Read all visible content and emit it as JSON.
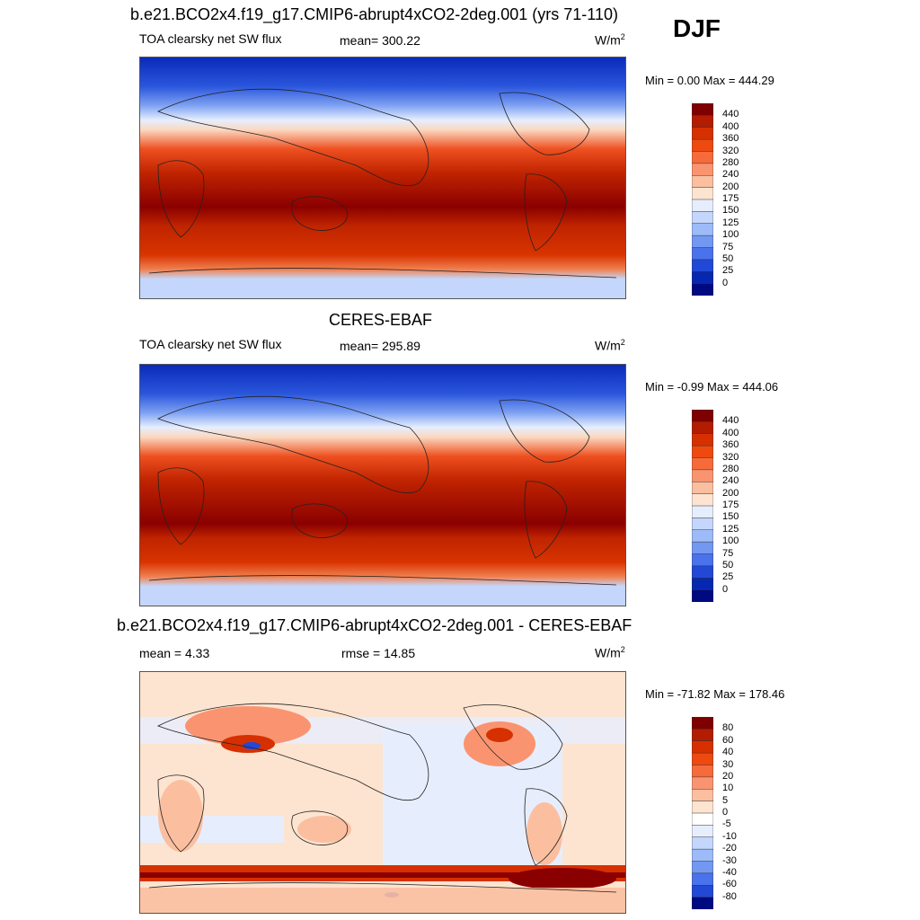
{
  "season": "DJF",
  "panels": [
    {
      "title": "b.e21.BCO2x4.f19_g17.CMIP6-abrupt4xCO2-2deg.001 (yrs 71-110)",
      "left_label": "TOA clearsky net SW flux",
      "center_label": "mean= 300.22",
      "units": "W/m",
      "units_sup": "2",
      "minmax": "Min =   0.00 Max = 444.29",
      "type": "field",
      "colorbar_labels": [
        "440",
        "400",
        "360",
        "320",
        "280",
        "240",
        "200",
        "175",
        "150",
        "125",
        "100",
        "75",
        "50",
        "25",
        "0"
      ]
    },
    {
      "title": "CERES-EBAF",
      "left_label": "TOA clearsky net SW flux",
      "center_label": "mean= 295.89",
      "units": "W/m",
      "units_sup": "2",
      "minmax": "Min =  -0.99 Max = 444.06",
      "type": "field",
      "colorbar_labels": [
        "440",
        "400",
        "360",
        "320",
        "280",
        "240",
        "200",
        "175",
        "150",
        "125",
        "100",
        "75",
        "50",
        "25",
        "0"
      ]
    },
    {
      "title": "b.e21.BCO2x4.f19_g17.CMIP6-abrupt4xCO2-2deg.001 - CERES-EBAF",
      "left_label": "mean =   4.33",
      "center_label": "rmse =  14.85",
      "units": "W/m",
      "units_sup": "2",
      "minmax": "Min = -71.82 Max = 178.46",
      "type": "diff",
      "colorbar_labels": [
        "80",
        "60",
        "40",
        "30",
        "20",
        "10",
        "5",
        "0",
        "-5",
        "-10",
        "-20",
        "-30",
        "-40",
        "-60",
        "-80"
      ]
    }
  ],
  "colors": {
    "field": [
      "#7f0000",
      "#b31c00",
      "#d73000",
      "#ee4a10",
      "#f76a3a",
      "#fa9470",
      "#fbbfa0",
      "#fde4d0",
      "#e6eefe",
      "#c4d6fb",
      "#9cbbf8",
      "#7298f2",
      "#4a72ec",
      "#2248d6",
      "#0628b0",
      "#000a80"
    ],
    "diff": [
      "#7f0000",
      "#b31c00",
      "#d73000",
      "#ee4a10",
      "#f76a3a",
      "#fa9470",
      "#fbbfa0",
      "#fde4d0",
      "#ffffff",
      "#e6eefe",
      "#c4d6fb",
      "#9cbbf8",
      "#7298f2",
      "#4a72ec",
      "#2248d6",
      "#000a80"
    ]
  }
}
